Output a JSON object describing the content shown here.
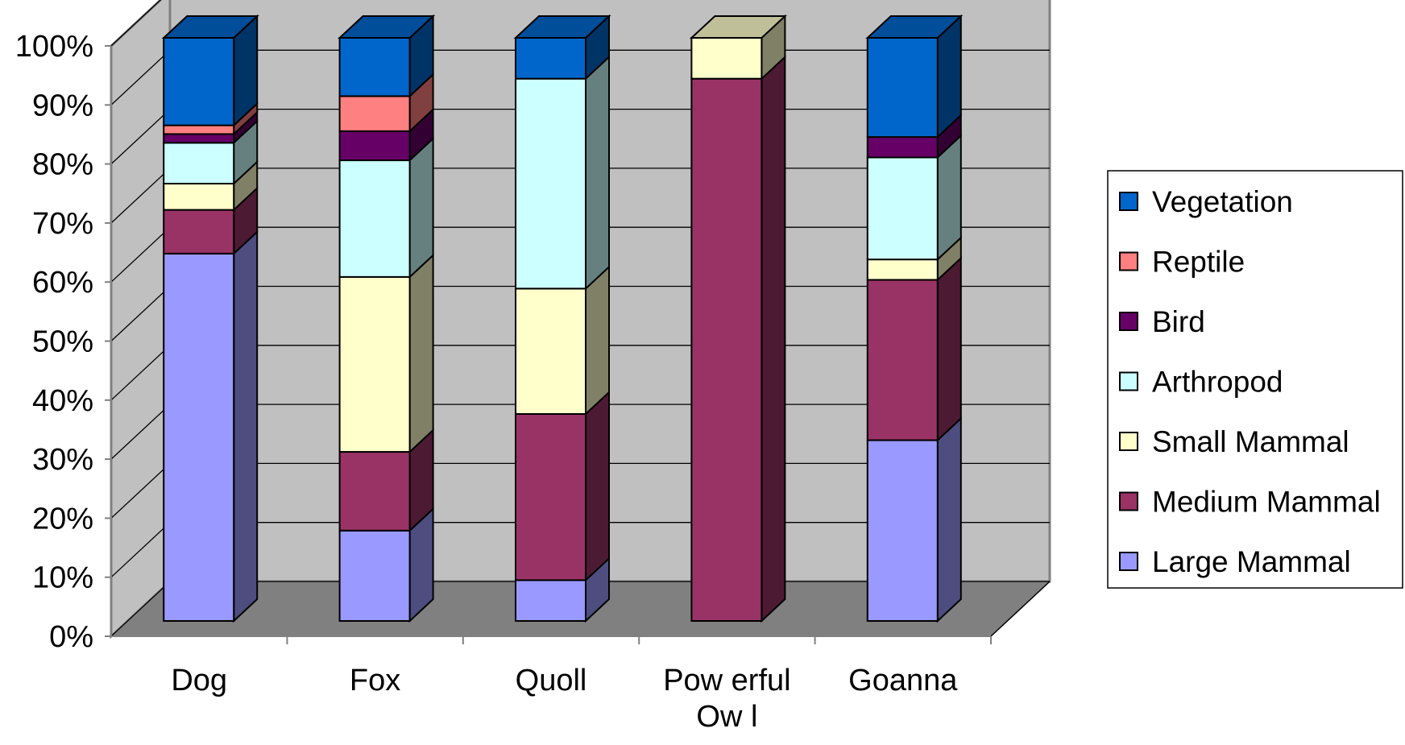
{
  "chart_data": {
    "type": "bar",
    "stacked": true,
    "percent_stacked": true,
    "three_d": true,
    "title": "",
    "xlabel": "",
    "ylabel": "",
    "ylim": [
      0,
      100
    ],
    "y_ticks": [
      "0%",
      "10%",
      "20%",
      "30%",
      "40%",
      "50%",
      "60%",
      "70%",
      "80%",
      "90%",
      "100%"
    ],
    "categories": [
      "Dog",
      "Fox",
      "Quoll",
      "Powerful Owl",
      "Goanna"
    ],
    "category_label_lines": [
      [
        "Dog"
      ],
      [
        "Fox"
      ],
      [
        "Quoll"
      ],
      [
        "Pow erful",
        "Ow l"
      ],
      [
        "Goanna"
      ]
    ],
    "series": [
      {
        "name": "Large Mammal",
        "color": "#9999ff",
        "values": [
          63,
          15.5,
          7,
          0,
          31
        ]
      },
      {
        "name": "Medium Mammal",
        "color": "#993366",
        "values": [
          7.5,
          13.5,
          28.5,
          93,
          27.5
        ]
      },
      {
        "name": "Small Mammal",
        "color": "#ffffcc",
        "values": [
          4.5,
          30,
          21.5,
          7,
          3.5
        ]
      },
      {
        "name": "Arthropod",
        "color": "#ccffff",
        "values": [
          7,
          20,
          36,
          0,
          17.5
        ]
      },
      {
        "name": "Bird",
        "color": "#660066",
        "values": [
          1.5,
          5,
          0,
          0,
          3.5
        ]
      },
      {
        "name": "Reptile",
        "color": "#ff8080",
        "values": [
          1.5,
          6,
          0,
          0,
          0
        ]
      },
      {
        "name": "Vegetation",
        "color": "#0066cc",
        "values": [
          15,
          10,
          7,
          0,
          17
        ]
      }
    ],
    "grid": true,
    "legend_position": "right",
    "wall_color": "#c0c0c0",
    "floor_color": "#808080"
  }
}
